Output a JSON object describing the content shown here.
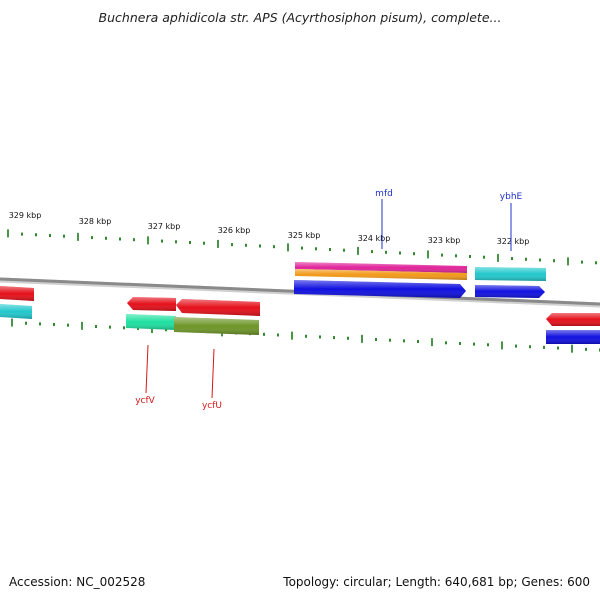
{
  "title": "Buchnera aphidicola str. APS (Acyrthosiphon pisum), complete...",
  "footer": {
    "accession": "Accession: NC_002528",
    "summary": "Topology: circular; Length: 640,681 bp; Genes: 600"
  },
  "ruler": {
    "tick_labels": [
      "329 kbp",
      "328 kbp",
      "327 kbp",
      "326 kbp",
      "325 kbp",
      "324 kbp",
      "323 kbp",
      "322 kbp"
    ]
  },
  "gene_labels": {
    "forward": [
      "mfd",
      "ybhE"
    ],
    "reverse": [
      "ycfV",
      "ycfU"
    ]
  },
  "colors": {
    "backbone": "#8a8a8a",
    "tick": "#1a7a1a",
    "forward_label": "#1f33c8",
    "reverse_label": "#d41818",
    "red": "#e5101b",
    "blue": "#1010e0",
    "cyan": "#22c8cc",
    "magenta": "#e0259a",
    "orange": "#f29a1a",
    "spring_green": "#1fe0a0",
    "olive": "#6e9628"
  }
}
